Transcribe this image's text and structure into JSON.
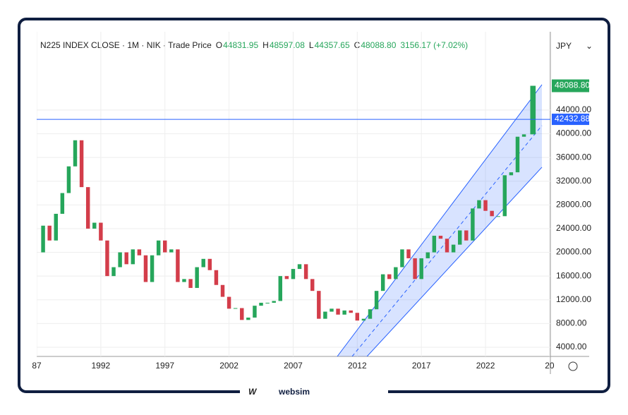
{
  "chart_data": {
    "type": "candlestick",
    "header": {
      "symbol": "N225 INDEX CLOSE · 1M · NIK · Trade Price",
      "o_label": "O",
      "o": "44831.95",
      "h_label": "H",
      "h": "48597.08",
      "l_label": "L",
      "l": "44357.65",
      "c_label": "C",
      "c": "48088.80",
      "change": "3156.17 (+7.02%)"
    },
    "currency": "JPY",
    "x": [
      1987.0,
      1987.5,
      1988.0,
      1988.5,
      1989.0,
      1989.5,
      1990.0,
      1990.5,
      1991.0,
      1991.5,
      1992.0,
      1992.5,
      1993.0,
      1993.5,
      1994.0,
      1994.5,
      1995.0,
      1995.5,
      1996.0,
      1996.5,
      1997.0,
      1997.5,
      1998.0,
      1998.5,
      1999.0,
      1999.5,
      2000.0,
      2000.5,
      2001.0,
      2001.5,
      2002.0,
      2002.5,
      2003.0,
      2003.5,
      2004.0,
      2004.5,
      2005.0,
      2005.5,
      2006.0,
      2006.5,
      2007.0,
      2007.5,
      2008.0,
      2008.5,
      2009.0,
      2009.5,
      2010.0,
      2010.5,
      2011.0,
      2011.5,
      2012.0,
      2012.5,
      2013.0,
      2013.5,
      2014.0,
      2014.5,
      2015.0,
      2015.5,
      2016.0,
      2016.5,
      2017.0,
      2017.5,
      2018.0,
      2018.5,
      2019.0,
      2019.5,
      2020.0,
      2020.5,
      2021.0,
      2021.5,
      2022.0,
      2022.5,
      2023.0,
      2023.5,
      2024.0,
      2024.5,
      2025.0,
      2025.7
    ],
    "close": [
      20000,
      24500,
      22000,
      26500,
      30000,
      34500,
      38900,
      31000,
      24000,
      25000,
      22000,
      16000,
      17500,
      20000,
      18000,
      20500,
      19500,
      15000,
      19500,
      22000,
      20000,
      20500,
      15000,
      15500,
      14000,
      17500,
      18900,
      17000,
      14500,
      12500,
      10500,
      10600,
      8600,
      9000,
      11000,
      11500,
      11500,
      11800,
      16000,
      15500,
      17200,
      18000,
      15500,
      13500,
      8800,
      10000,
      10500,
      9500,
      10200,
      9800,
      8500,
      8800,
      10400,
      13500,
      16300,
      15500,
      17500,
      20500,
      19000,
      15500,
      19000,
      20000,
      22800,
      22300,
      20000,
      21300,
      23700,
      22000,
      27400,
      28800,
      27000,
      26100,
      26100,
      33000,
      33500,
      39500,
      39900,
      48088.8
    ],
    "xlim": [
      1987,
      2027.06
    ],
    "ylim": [
      2450,
      57200
    ],
    "xticks": [
      {
        "value": 1987,
        "label": "87"
      },
      1992,
      1997,
      2002,
      2007,
      2012,
      2017,
      2022,
      {
        "value": 2027,
        "label": "20"
      }
    ],
    "yticks": [
      {
        "value": 4000,
        "label": "4000.00"
      },
      {
        "value": 8000,
        "label": "8000.00"
      },
      {
        "value": 12000,
        "label": "12000.00"
      },
      {
        "value": 16000,
        "label": "16000.00"
      },
      {
        "value": 20000,
        "label": "20000.00"
      },
      {
        "value": 24000,
        "label": "24000.00"
      },
      {
        "value": 28000,
        "label": "28000.00"
      },
      {
        "value": 32000,
        "label": "32000.00"
      },
      {
        "value": 36000,
        "label": "36000.00"
      },
      {
        "value": 40000,
        "label": "40000.00"
      },
      {
        "value": 44000,
        "label": "44000.00"
      }
    ],
    "hline": {
      "value": 42432.88,
      "label": "42432.88",
      "color": "#2962ff"
    },
    "last_price": {
      "value": 48088.8,
      "label": "48088.80",
      "color": "#26a65b"
    },
    "channel": {
      "upper": [
        [
          2010.44,
          2450
        ],
        [
          2026.4,
          48286
        ]
      ],
      "middle": [
        [
          2011.6,
          2450
        ],
        [
          2026.4,
          41380
        ]
      ],
      "lower": [
        [
          2012.76,
          2450
        ],
        [
          2026.4,
          34357
        ]
      ]
    },
    "up_color": "#26a65b",
    "down_color": "#d33d4a",
    "grid": true,
    "brand": "websim"
  }
}
